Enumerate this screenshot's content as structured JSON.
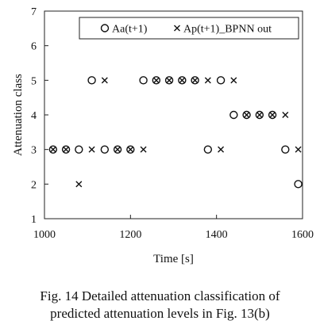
{
  "chart_data": {
    "type": "scatter",
    "xlabel": "Time [s]",
    "ylabel": "Attenuation class",
    "xlim": [
      1000,
      1600
    ],
    "ylim": [
      1,
      7
    ],
    "x_ticks": [
      "1000",
      "1200",
      "1400",
      "1600"
    ],
    "y_ticks": [
      "1",
      "2",
      "3",
      "4",
      "5",
      "6",
      "7"
    ],
    "grid": false,
    "legend_position": "top-right",
    "series": [
      {
        "name": "Aa(t+1)",
        "marker": "circle",
        "points": [
          [
            1020,
            3
          ],
          [
            1050,
            3
          ],
          [
            1080,
            3
          ],
          [
            1110,
            5
          ],
          [
            1140,
            3
          ],
          [
            1170,
            3
          ],
          [
            1200,
            3
          ],
          [
            1230,
            5
          ],
          [
            1260,
            5
          ],
          [
            1290,
            5
          ],
          [
            1320,
            5
          ],
          [
            1350,
            5
          ],
          [
            1380,
            3
          ],
          [
            1410,
            5
          ],
          [
            1440,
            4
          ],
          [
            1470,
            4
          ],
          [
            1500,
            4
          ],
          [
            1530,
            4
          ],
          [
            1560,
            3
          ],
          [
            1590,
            2
          ]
        ]
      },
      {
        "name": "Ap(t+1)_BPNN out",
        "marker": "x",
        "points": [
          [
            1020,
            3
          ],
          [
            1050,
            3
          ],
          [
            1080,
            2
          ],
          [
            1110,
            3
          ],
          [
            1140,
            5
          ],
          [
            1170,
            3
          ],
          [
            1200,
            3
          ],
          [
            1230,
            3
          ],
          [
            1260,
            5
          ],
          [
            1290,
            5
          ],
          [
            1320,
            5
          ],
          [
            1350,
            5
          ],
          [
            1380,
            5
          ],
          [
            1410,
            3
          ],
          [
            1440,
            5
          ],
          [
            1470,
            4
          ],
          [
            1500,
            4
          ],
          [
            1530,
            4
          ],
          [
            1560,
            4
          ],
          [
            1590,
            3
          ]
        ]
      }
    ]
  },
  "caption": {
    "line1": "Fig. 14  Detailed attenuation classification of",
    "line2": "predicted attenuation levels in Fig. 13(b)"
  }
}
